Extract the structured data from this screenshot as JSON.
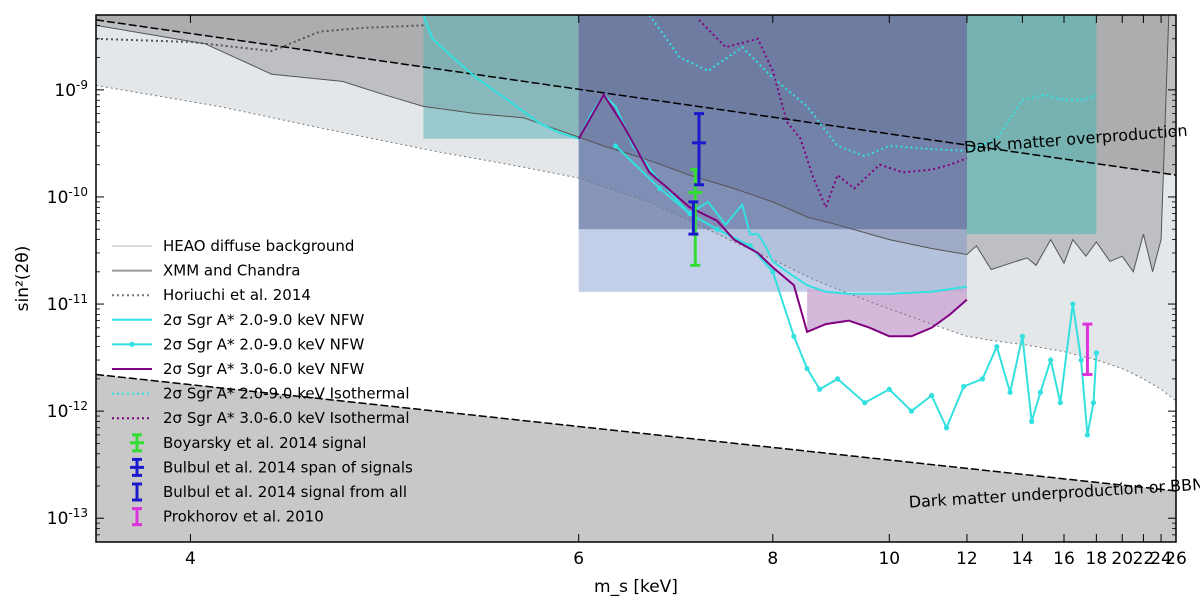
{
  "chart_data": {
    "type": "line",
    "title": "",
    "xlabel": "m_s [keV]",
    "ylabel": "sin²(2θ)",
    "xscale": "1/x",
    "yscale": "log",
    "xlim": [
      3.7,
      26
    ],
    "ylim": [
      6e-14,
      5e-09
    ],
    "x_ticks": [
      {
        "value": 4,
        "label": "4"
      },
      {
        "value": 6,
        "label": "6"
      },
      {
        "value": 8,
        "label": "8"
      },
      {
        "value": 10,
        "label": "10"
      },
      {
        "value": 12,
        "label": "12"
      },
      {
        "value": 14,
        "label": "14"
      },
      {
        "value": 16,
        "label": "16"
      },
      {
        "value": 18,
        "label": "18"
      },
      {
        "value": 20,
        "label": "20"
      },
      {
        "value": 22,
        "label": "22"
      },
      {
        "value": 24,
        "label": "24"
      },
      {
        "value": 26,
        "label": "26"
      }
    ],
    "y_ticks": [
      {
        "exp": -9,
        "base": "10",
        "sup": "-9"
      },
      {
        "exp": -10,
        "base": "10",
        "sup": "-10"
      },
      {
        "exp": -11,
        "base": "10",
        "sup": "-11"
      },
      {
        "exp": -12,
        "base": "10",
        "sup": "-12"
      },
      {
        "exp": -13,
        "base": "10",
        "sup": "-13"
      }
    ],
    "regions": [
      {
        "name": "Dark matter overproduction",
        "boundary": [
          [
            3.7,
            4.5e-09
          ],
          [
            26,
            1.6e-10
          ]
        ],
        "color": "#9e9e9e"
      },
      {
        "name": "Dark matter underproduction or BBN violation",
        "boundary": [
          [
            3.7,
            2.2e-12
          ],
          [
            26,
            1.8e-13
          ]
        ],
        "color": "#c8c8c8"
      },
      {
        "name": "HEAO diffuse background",
        "color": "#e3e7ea"
      },
      {
        "name": "XMM and Chandra",
        "color": "#b8babe"
      }
    ],
    "annotations": [
      {
        "text": "Dark matter overproduction",
        "x": 16.7,
        "y": 3.1e-10,
        "angle": -4.4
      },
      {
        "text": "Dark matter underproduction or BBN violation",
        "x": 17.8,
        "y": 1.6e-13,
        "angle": -3.5
      }
    ],
    "series": [
      {
        "name": "HEAO diffuse background",
        "style": "solid",
        "color": "#dddddd",
        "points": [
          [
            3.7,
            1.1e-09
          ],
          [
            4.1,
            7e-10
          ],
          [
            4.6,
            4e-10
          ],
          [
            5.1,
            2.6e-10
          ],
          [
            5.6,
            1.9e-10
          ],
          [
            6,
            1.5e-10
          ],
          [
            6.6,
            9e-11
          ],
          [
            7,
            6e-11
          ],
          [
            7.5,
            3.8e-11
          ],
          [
            8,
            2.6e-11
          ],
          [
            8.6,
            1.7e-11
          ],
          [
            9.2,
            1.25e-11
          ],
          [
            10,
            9e-12
          ],
          [
            11,
            6.5e-12
          ],
          [
            12,
            5e-12
          ],
          [
            13,
            4.5e-12
          ],
          [
            14,
            4.2e-12
          ],
          [
            16,
            3.6e-12
          ],
          [
            18,
            3e-12
          ],
          [
            20,
            2.5e-12
          ],
          [
            22,
            2e-12
          ],
          [
            24,
            1.6e-12
          ],
          [
            26,
            1.25e-12
          ]
        ]
      },
      {
        "name": "XMM and Chandra",
        "style": "solid",
        "color": "#777777",
        "points": [
          [
            3.7,
            4e-09
          ],
          [
            4.05,
            2.7e-09
          ],
          [
            4.3,
            1.4e-09
          ],
          [
            4.6,
            1.2e-09
          ],
          [
            4.8,
            9e-10
          ],
          [
            5.0,
            7e-10
          ],
          [
            5.3,
            6e-10
          ],
          [
            5.6,
            5.5e-10
          ],
          [
            5.9,
            4e-10
          ],
          [
            6.2,
            3e-10
          ],
          [
            6.6,
            2.2e-10
          ],
          [
            7.0,
            1.6e-10
          ],
          [
            7.5,
            1.2e-10
          ],
          [
            8,
            9e-11
          ],
          [
            8.5,
            6.5e-11
          ],
          [
            9,
            5.5e-11
          ],
          [
            9.6,
            4.5e-11
          ],
          [
            10,
            4e-11
          ],
          [
            11,
            3.3e-11
          ],
          [
            12,
            2.9e-11
          ],
          [
            12.3,
            3.5e-11
          ],
          [
            12.8,
            2.1e-11
          ],
          [
            13.5,
            2.4e-11
          ],
          [
            14.2,
            2.7e-11
          ],
          [
            14.6,
            2.3e-11
          ],
          [
            15.3,
            4e-11
          ],
          [
            16,
            2.4e-11
          ],
          [
            16.5,
            4e-11
          ],
          [
            17.3,
            2.8e-11
          ],
          [
            18,
            3.8e-11
          ],
          [
            19,
            2.5e-11
          ],
          [
            20,
            2.8e-11
          ],
          [
            21,
            2e-11
          ],
          [
            22,
            4.5e-11
          ],
          [
            23,
            2e-11
          ],
          [
            24,
            4e-11
          ],
          [
            25,
            5e-09
          ],
          [
            26,
            5e-09
          ]
        ]
      },
      {
        "name": "Horiuchi et al. 2014",
        "style": "dotted",
        "color": "#777777",
        "points": [
          [
            3.7,
            3e-09
          ],
          [
            4.0,
            2.8e-09
          ],
          [
            4.3,
            2.3e-09
          ],
          [
            4.5,
            3.5e-09
          ],
          [
            4.7,
            3.8e-09
          ],
          [
            5.0,
            4e-09
          ]
        ]
      },
      {
        "name": "2σ Sgr A* 2.0-9.0 keV NFW",
        "style": "solid",
        "color": "#33e0e0",
        "points": [
          [
            5.0,
            5e-09
          ],
          [
            5.05,
            3e-09
          ],
          [
            5.15,
            2.1e-09
          ],
          [
            5.3,
            1.3e-09
          ],
          [
            5.5,
            8e-10
          ],
          [
            5.7,
            5e-10
          ],
          [
            5.85,
            4e-10
          ],
          [
            6.0,
            3.5e-10
          ],
          [
            6.1,
            6e-10
          ],
          [
            6.2,
            9e-10
          ],
          [
            6.3,
            7e-10
          ],
          [
            6.45,
            3e-10
          ],
          [
            6.65,
            1.6e-10
          ],
          [
            6.8,
            1.1e-10
          ],
          [
            7.0,
            7e-11
          ],
          [
            7.2,
            9e-11
          ],
          [
            7.4,
            5.5e-11
          ],
          [
            7.6,
            8.5e-11
          ],
          [
            7.7,
            4.5e-11
          ],
          [
            7.8,
            4.5e-11
          ],
          [
            7.9,
            3.5e-11
          ],
          [
            8.0,
            2.5e-11
          ],
          [
            8.2,
            2e-11
          ],
          [
            8.5,
            1.5e-11
          ],
          [
            8.8,
            1.3e-11
          ],
          [
            9.2,
            1.25e-11
          ],
          [
            10,
            1.25e-11
          ],
          [
            11,
            1.3e-11
          ],
          [
            12,
            1.45e-11
          ]
        ]
      },
      {
        "name": "2σ Sgr A* 2.0-9.0 keV NFW",
        "style": "solid-dots",
        "color": "#33e0e0",
        "points": [
          [
            6.3,
            3e-10
          ],
          [
            6.7,
            1.2e-10
          ],
          [
            7,
            7e-11
          ],
          [
            7.3,
            5e-11
          ],
          [
            7.7,
            3.5e-11
          ],
          [
            8.0,
            2e-11
          ],
          [
            8.3,
            5e-12
          ],
          [
            8.5,
            2.5e-12
          ],
          [
            8.7,
            1.6e-12
          ],
          [
            9,
            2e-12
          ],
          [
            9.5,
            1.2e-12
          ],
          [
            10,
            1.6e-12
          ],
          [
            10.5,
            1e-12
          ],
          [
            11,
            1.4e-12
          ],
          [
            11.4,
            7e-13
          ],
          [
            11.9,
            1.7e-12
          ],
          [
            12.5,
            2e-12
          ],
          [
            13,
            4e-12
          ],
          [
            13.5,
            1.5e-12
          ],
          [
            14,
            5e-12
          ],
          [
            14.4,
            8e-13
          ],
          [
            14.8,
            1.5e-12
          ],
          [
            15.3,
            3e-12
          ],
          [
            15.8,
            1.2e-12
          ],
          [
            16.5,
            1e-11
          ],
          [
            17,
            3e-12
          ],
          [
            17.4,
            6e-13
          ],
          [
            17.8,
            1.2e-12
          ],
          [
            18,
            3.5e-12
          ]
        ]
      },
      {
        "name": "2σ Sgr A* 3.0-6.0 keV NFW",
        "style": "solid",
        "color": "#800080",
        "points": [
          [
            6.0,
            3.5e-10
          ],
          [
            6.2,
            9e-10
          ],
          [
            6.35,
            5e-10
          ],
          [
            6.6,
            1.7e-10
          ],
          [
            7.0,
            8e-11
          ],
          [
            7.3,
            6e-11
          ],
          [
            7.5,
            4e-11
          ],
          [
            7.8,
            3e-11
          ],
          [
            8.0,
            2.2e-11
          ],
          [
            8.3,
            1.5e-11
          ],
          [
            8.5,
            5.5e-12
          ],
          [
            8.8,
            6.5e-12
          ],
          [
            9.2,
            7e-12
          ],
          [
            9.6,
            6e-12
          ],
          [
            10,
            5e-12
          ],
          [
            10.5,
            5e-12
          ],
          [
            11,
            6e-12
          ],
          [
            11.5,
            8e-12
          ],
          [
            12,
            1.1e-11
          ]
        ]
      },
      {
        "name": "2σ Sgr A* 2.0-9.0 keV Isothermal",
        "style": "dotted",
        "color": "#33e0e0",
        "points": [
          [
            6.6,
            5e-09
          ],
          [
            6.9,
            2e-09
          ],
          [
            7.2,
            1.5e-09
          ],
          [
            7.6,
            2.5e-09
          ],
          [
            8,
            1.3e-09
          ],
          [
            8.5,
            7e-10
          ],
          [
            9,
            3e-10
          ],
          [
            9.5,
            2.4e-10
          ],
          [
            10,
            3e-10
          ],
          [
            11,
            2.8e-10
          ],
          [
            12,
            2.7e-10
          ],
          [
            13,
            3.5e-10
          ],
          [
            14,
            8e-10
          ],
          [
            15,
            9e-10
          ],
          [
            16,
            8e-10
          ],
          [
            17,
            8e-10
          ],
          [
            18,
            9e-10
          ]
        ]
      },
      {
        "name": "2σ Sgr A* 3.0-6.0 keV Isothermal",
        "style": "dotted",
        "color": "#800080",
        "points": [
          [
            7.1,
            4.5e-09
          ],
          [
            7.4,
            2.5e-09
          ],
          [
            7.8,
            3e-09
          ],
          [
            8.0,
            1.5e-09
          ],
          [
            8.2,
            5e-10
          ],
          [
            8.4,
            3.5e-10
          ],
          [
            8.6,
            1.5e-10
          ],
          [
            8.8,
            8e-11
          ],
          [
            9.0,
            1.6e-10
          ],
          [
            9.3,
            1.2e-10
          ],
          [
            9.8,
            2e-10
          ],
          [
            10.3,
            1.7e-10
          ],
          [
            11,
            1.8e-10
          ],
          [
            11.5,
            2e-10
          ],
          [
            12,
            2.3e-10
          ]
        ]
      }
    ],
    "error_bars": [
      {
        "name": "Boyarsky et al. 2014 signal",
        "x": 7.06,
        "y": 1.1e-10,
        "ylow": 2.3e-11,
        "yhigh": 1.8e-10,
        "color": "#33dd33",
        "cross": true
      },
      {
        "name": "Bulbul et al. 2014 span of signals",
        "x": 7.1,
        "y": 3.2e-10,
        "ylow": 1.3e-10,
        "yhigh": 6e-10,
        "color": "#1a1acc",
        "cross": true
      },
      {
        "name": "Bulbul et al. 2014 signal from all",
        "x": 7.04,
        "y": 6.5e-11,
        "ylow": 4.5e-11,
        "yhigh": 9e-11,
        "color": "#1a1acc",
        "cross": false
      },
      {
        "name": "Prokhorov et al. 2010",
        "x": 17.4,
        "y": 4e-12,
        "ylow": 2.2e-12,
        "yhigh": 6.5e-12,
        "color": "#dd33dd",
        "cross": false
      }
    ],
    "legend": {
      "position": "left",
      "entries": [
        {
          "label": "HEAO diffuse background",
          "style": "line",
          "color": "#dddddd"
        },
        {
          "label": "XMM and Chandra",
          "style": "line",
          "color": "#999999"
        },
        {
          "label": "Horiuchi et al. 2014",
          "style": "dotted",
          "color": "#777777"
        },
        {
          "label": "2σ Sgr A* 2.0-9.0 keV NFW",
          "style": "line",
          "color": "#33e0e0"
        },
        {
          "label": "2σ Sgr A* 2.0-9.0 keV NFW",
          "style": "line-dots",
          "color": "#33e0e0"
        },
        {
          "label": "2σ Sgr A* 3.0-6.0 keV NFW",
          "style": "line",
          "color": "#800080"
        },
        {
          "label": "2σ Sgr A* 2.0-9.0 keV Isothermal",
          "style": "dotted",
          "color": "#33e0e0"
        },
        {
          "label": "2σ Sgr A* 3.0-6.0 keV Isothermal",
          "style": "dotted",
          "color": "#800080"
        },
        {
          "label": "Boyarsky et al. 2014 signal",
          "style": "cross",
          "color": "#33dd33"
        },
        {
          "label": "Bulbul et al. 2014 span of signals",
          "style": "cross",
          "color": "#1a1acc"
        },
        {
          "label": "Bulbul et al. 2014 signal from all",
          "style": "ibar",
          "color": "#1a1acc"
        },
        {
          "label": "Prokhorov et al. 2010",
          "style": "ibar",
          "color": "#dd33dd"
        }
      ]
    }
  }
}
